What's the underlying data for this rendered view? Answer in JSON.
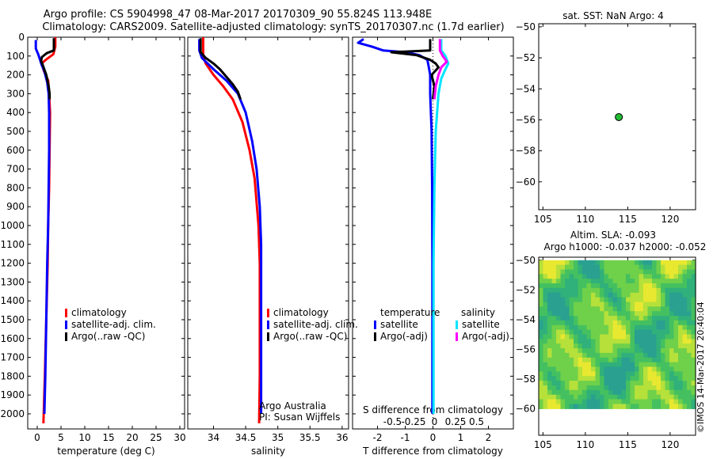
{
  "header": {
    "line1": "Argo profile: CS 5904998_47 08-Mar-2017 20170309_90 55.824S 113.948E",
    "line2": "Climatology: CARS2009. Satellite-adjusted climatology: synTS_20170307.nc (1.7d earlier)"
  },
  "colors": {
    "clim": "#ff0000",
    "sat": "#0000ff",
    "argo": "#000000",
    "sal_sat": "#00e5ff",
    "sal_argo": "#ff00ff",
    "sla_green": "#22bb33"
  },
  "chart_data": [
    {
      "type": "line",
      "id": "temperature",
      "xlabel": "temperature (deg C)",
      "ylabel": "",
      "xlim": [
        -2,
        31
      ],
      "ylim": [
        2080,
        0
      ],
      "xticks": [
        0,
        5,
        10,
        15,
        20,
        25,
        30
      ],
      "yticks": [
        0,
        100,
        200,
        300,
        400,
        500,
        600,
        700,
        800,
        900,
        1000,
        1100,
        1200,
        1300,
        1400,
        1500,
        1600,
        1700,
        1800,
        1900,
        2000
      ],
      "legend": [
        "climatology",
        "satellite-adj. clim.",
        "Argo(..raw -QC)"
      ],
      "series": [
        {
          "name": "climatology",
          "color": "clim",
          "points": [
            [
              3.8,
              0
            ],
            [
              3.8,
              50
            ],
            [
              3.4,
              90
            ],
            [
              1.8,
              120
            ],
            [
              0.9,
              140
            ],
            [
              1.4,
              180
            ],
            [
              2.3,
              230
            ],
            [
              2.5,
              300
            ],
            [
              2.7,
              400
            ],
            [
              2.6,
              600
            ],
            [
              2.5,
              800
            ],
            [
              2.3,
              1000
            ],
            [
              2.2,
              1200
            ],
            [
              1.9,
              1500
            ],
            [
              1.6,
              1800
            ],
            [
              1.3,
              2050
            ]
          ]
        },
        {
          "name": "satellite-adj. clim.",
          "color": "sat",
          "points": [
            [
              -0.3,
              15
            ],
            [
              -0.3,
              60
            ],
            [
              0.2,
              90
            ],
            [
              0.6,
              120
            ],
            [
              0.9,
              145
            ],
            [
              1.5,
              180
            ],
            [
              2.1,
              240
            ],
            [
              2.4,
              300
            ],
            [
              2.5,
              400
            ],
            [
              2.5,
              600
            ],
            [
              2.4,
              800
            ],
            [
              2.3,
              1000
            ],
            [
              2.1,
              1200
            ],
            [
              1.9,
              1500
            ],
            [
              1.7,
              1800
            ],
            [
              1.5,
              2000
            ]
          ]
        },
        {
          "name": "Argo(..raw -QC)",
          "color": "argo",
          "points": [
            [
              3.5,
              5
            ],
            [
              3.5,
              70
            ],
            [
              2.0,
              85
            ],
            [
              1.0,
              105
            ],
            [
              0.8,
              125
            ],
            [
              1.2,
              150
            ],
            [
              1.9,
              200
            ],
            [
              2.4,
              260
            ],
            [
              2.6,
              300
            ],
            [
              2.6,
              330
            ]
          ]
        }
      ]
    },
    {
      "type": "line",
      "id": "salinity",
      "xlabel": "salinity",
      "xlim": [
        33.6,
        36.1
      ],
      "ylim": [
        2080,
        0
      ],
      "xticks": [
        34,
        34.5,
        35,
        35.5,
        36
      ],
      "xticklabels": [
        "34",
        "34.5",
        "35",
        "35.5",
        "36"
      ],
      "legend": [
        "climatology",
        "satellite-adj. clim.",
        "Argo(..raw -QC)"
      ],
      "annotation": [
        "Argo Australia",
        "PI: Susan Wijffels"
      ],
      "series": [
        {
          "name": "climatology",
          "color": "clim",
          "points": [
            [
              33.84,
              0
            ],
            [
              33.84,
              100
            ],
            [
              33.88,
              140
            ],
            [
              34.0,
              200
            ],
            [
              34.15,
              260
            ],
            [
              34.3,
              330
            ],
            [
              34.45,
              450
            ],
            [
              34.56,
              600
            ],
            [
              34.64,
              750
            ],
            [
              34.7,
              1000
            ],
            [
              34.72,
              1200
            ],
            [
              34.72,
              1500
            ],
            [
              34.72,
              1800
            ],
            [
              34.71,
              2050
            ]
          ]
        },
        {
          "name": "satellite-adj. clim.",
          "color": "sat",
          "points": [
            [
              33.78,
              10
            ],
            [
              33.78,
              70
            ],
            [
              33.82,
              110
            ],
            [
              34.0,
              170
            ],
            [
              34.2,
              230
            ],
            [
              34.38,
              300
            ],
            [
              34.5,
              400
            ],
            [
              34.6,
              550
            ],
            [
              34.67,
              700
            ],
            [
              34.72,
              900
            ],
            [
              34.74,
              1100
            ],
            [
              34.74,
              1400
            ],
            [
              34.74,
              1700
            ],
            [
              34.74,
              2000
            ]
          ]
        },
        {
          "name": "Argo(..raw -QC)",
          "color": "argo",
          "points": [
            [
              33.8,
              5
            ],
            [
              33.8,
              80
            ],
            [
              33.88,
              110
            ],
            [
              34.0,
              140
            ],
            [
              34.1,
              170
            ],
            [
              34.2,
              210
            ],
            [
              34.3,
              250
            ],
            [
              34.38,
              290
            ],
            [
              34.42,
              330
            ]
          ]
        }
      ]
    },
    {
      "type": "line",
      "id": "difference",
      "xlabel": "T difference from climatology",
      "top_label": "S difference from climatology",
      "xlim": [
        -2.9,
        2.9
      ],
      "ylim": [
        2080,
        0
      ],
      "xticks": [
        -2,
        -1,
        0,
        1,
        2
      ],
      "top_ticks": [
        -0.5,
        -0.25,
        0,
        0.25,
        0.5
      ],
      "top_ticklabels": [
        "-0.5",
        "-0.25",
        "0",
        "0.25",
        "0.5"
      ],
      "legend_titles": [
        "temperature",
        "salinity"
      ],
      "legend": [
        "satellite",
        "Argo(-adj)",
        "satellite",
        "Argo(-adj)"
      ],
      "series": [
        {
          "name": "T satellite",
          "color": "sat",
          "points": [
            [
              -2.5,
              10
            ],
            [
              -2.7,
              30
            ],
            [
              -2.2,
              50
            ],
            [
              -1.8,
              70
            ],
            [
              -1.0,
              80
            ],
            [
              -0.5,
              95
            ],
            [
              -0.2,
              120
            ],
            [
              -0.15,
              160
            ],
            [
              -0.1,
              200
            ],
            [
              -0.1,
              300
            ],
            [
              -0.05,
              500
            ],
            [
              -0.03,
              800
            ],
            [
              -0.02,
              1200
            ],
            [
              -0.02,
              1600
            ],
            [
              -0.02,
              2000
            ]
          ]
        },
        {
          "name": "T Argo(-adj)",
          "color": "argo",
          "points": [
            [
              -0.1,
              10
            ],
            [
              -0.1,
              70
            ],
            [
              -1.5,
              80
            ],
            [
              -0.6,
              95
            ],
            [
              -0.1,
              120
            ],
            [
              0.1,
              140
            ],
            [
              0.2,
              160
            ],
            [
              -0.05,
              200
            ],
            [
              0.05,
              260
            ],
            [
              0.0,
              330
            ]
          ]
        },
        {
          "name": "S satellite",
          "color": "sal_sat",
          "points": [
            [
              0.3,
              10
            ],
            [
              0.3,
              70
            ],
            [
              0.45,
              100
            ],
            [
              0.55,
              140
            ],
            [
              0.42,
              180
            ],
            [
              0.3,
              220
            ],
            [
              0.2,
              300
            ],
            [
              0.1,
              500
            ],
            [
              0.05,
              800
            ],
            [
              0.02,
              1200
            ],
            [
              0.02,
              1600
            ],
            [
              0.02,
              2000
            ]
          ]
        },
        {
          "name": "S Argo(-adj)",
          "color": "sal_argo",
          "points": [
            [
              0.25,
              10
            ],
            [
              0.25,
              70
            ],
            [
              0.35,
              100
            ],
            [
              0.5,
              130
            ],
            [
              0.3,
              160
            ],
            [
              0.2,
              200
            ],
            [
              0.1,
              260
            ],
            [
              0.05,
              330
            ]
          ]
        }
      ]
    },
    {
      "type": "scatter",
      "id": "map_sst",
      "title": "sat. SST: NaN Argo: 4",
      "xlim": [
        104.5,
        123
      ],
      "ylim": [
        -61.8,
        -49.8
      ],
      "xticks": [
        105,
        110,
        115,
        120
      ],
      "yticks": [
        -50,
        -52,
        -54,
        -56,
        -58,
        -60
      ],
      "points": [
        [
          113.948,
          -55.824
        ]
      ]
    },
    {
      "type": "heatmap",
      "id": "map_sla",
      "title1": "Altim. SLA: -0.093",
      "title2": "Argo h1000: -0.037 h2000: -0.052",
      "xlim": [
        104.5,
        123
      ],
      "ylim": [
        -61.8,
        -49.8
      ],
      "xticks": [
        105,
        110,
        115,
        120
      ],
      "yticks": [
        -50,
        -52,
        -54,
        -56,
        -58,
        -60
      ],
      "field_extent": {
        "lon": [
          104.5,
          123
        ],
        "lat": [
          -60,
          -50
        ]
      }
    }
  ],
  "watermark": "©IMOS 14-Mar-2017 20:40:04"
}
